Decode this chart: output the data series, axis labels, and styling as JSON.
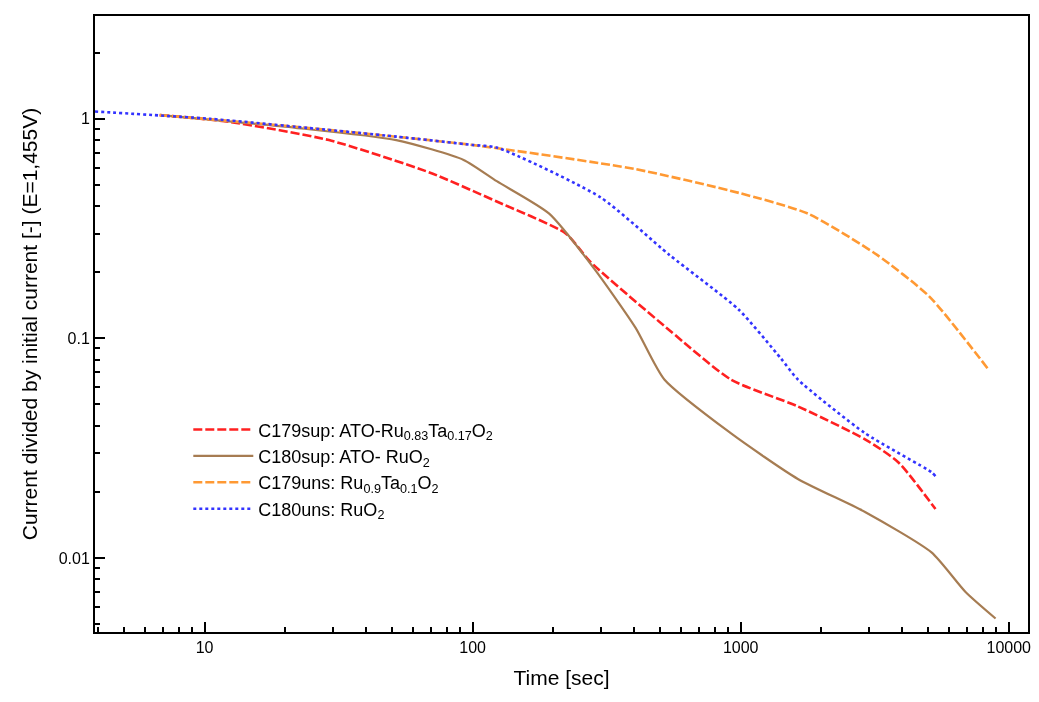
{
  "chart_data": {
    "type": "line",
    "xlabel": "Time [sec]",
    "ylabel": "Current divided by initial current [-] (E=1,455V)",
    "log": "xy",
    "legend": "bottom left",
    "xlim": [
      3.9,
      11800
    ],
    "xticks": [
      10,
      100,
      1000,
      10000
    ],
    "ylim": [
      0.0046,
      2.94
    ],
    "yticks": [
      0.01,
      0.1,
      1
    ],
    "series": [
      {
        "name": "C179sup: ATO-Ru$_{0.83}$Ta$_{0.17}$O$_{2}$",
        "color": "#ff2020",
        "line_style": "dashed",
        "x": [
          6.8,
          12.3,
          29.1,
          69,
          123,
          223,
          274,
          542,
          918,
          1634,
          2910,
          3870,
          5330
        ],
        "values": [
          1.04,
          0.97,
          0.8,
          0.57,
          0.42,
          0.3,
          0.224,
          0.109,
          0.065,
          0.049,
          0.0347,
          0.0273,
          0.0167
        ]
      },
      {
        "name": "C180sup: ATO- RuO$_{2}$",
        "color": "#a67c52",
        "line_style": "solid",
        "x": [
          6.8,
          21.9,
          51.9,
          92.5,
          123,
          193,
          284,
          405,
          519,
          918,
          1634,
          2910,
          5150,
          6900,
          8930
        ],
        "values": [
          1.04,
          0.91,
          0.8,
          0.65,
          0.52,
          0.37,
          0.208,
          0.112,
          0.065,
          0.037,
          0.0229,
          0.0162,
          0.0106,
          0.007,
          0.0053
        ]
      },
      {
        "name": "C179uns: Ru$_{0.9}$Ta$_{0.1}$O$_{2}$",
        "color": "#ff9933",
        "line_style": "dashed",
        "x": [
          6.8,
          21.9,
          100,
          405,
          984,
          1783,
          3228,
          5060,
          8340
        ],
        "values": [
          1.04,
          0.92,
          0.76,
          0.59,
          0.46,
          0.37,
          0.24,
          0.155,
          0.073
        ]
      },
      {
        "name": "C180uns: RuO$_{2}$",
        "color": "#3333ff",
        "line_style": "dotted",
        "x": [
          3.9,
          10.5,
          21.9,
          51.9,
          100,
          123,
          299,
          542,
          984,
          1413,
          1634,
          2910,
          5150,
          5330
        ],
        "values": [
          1.08,
          1.0,
          0.92,
          0.83,
          0.76,
          0.74,
          0.44,
          0.24,
          0.135,
          0.081,
          0.065,
          0.037,
          0.0246,
          0.0236
        ]
      }
    ]
  }
}
